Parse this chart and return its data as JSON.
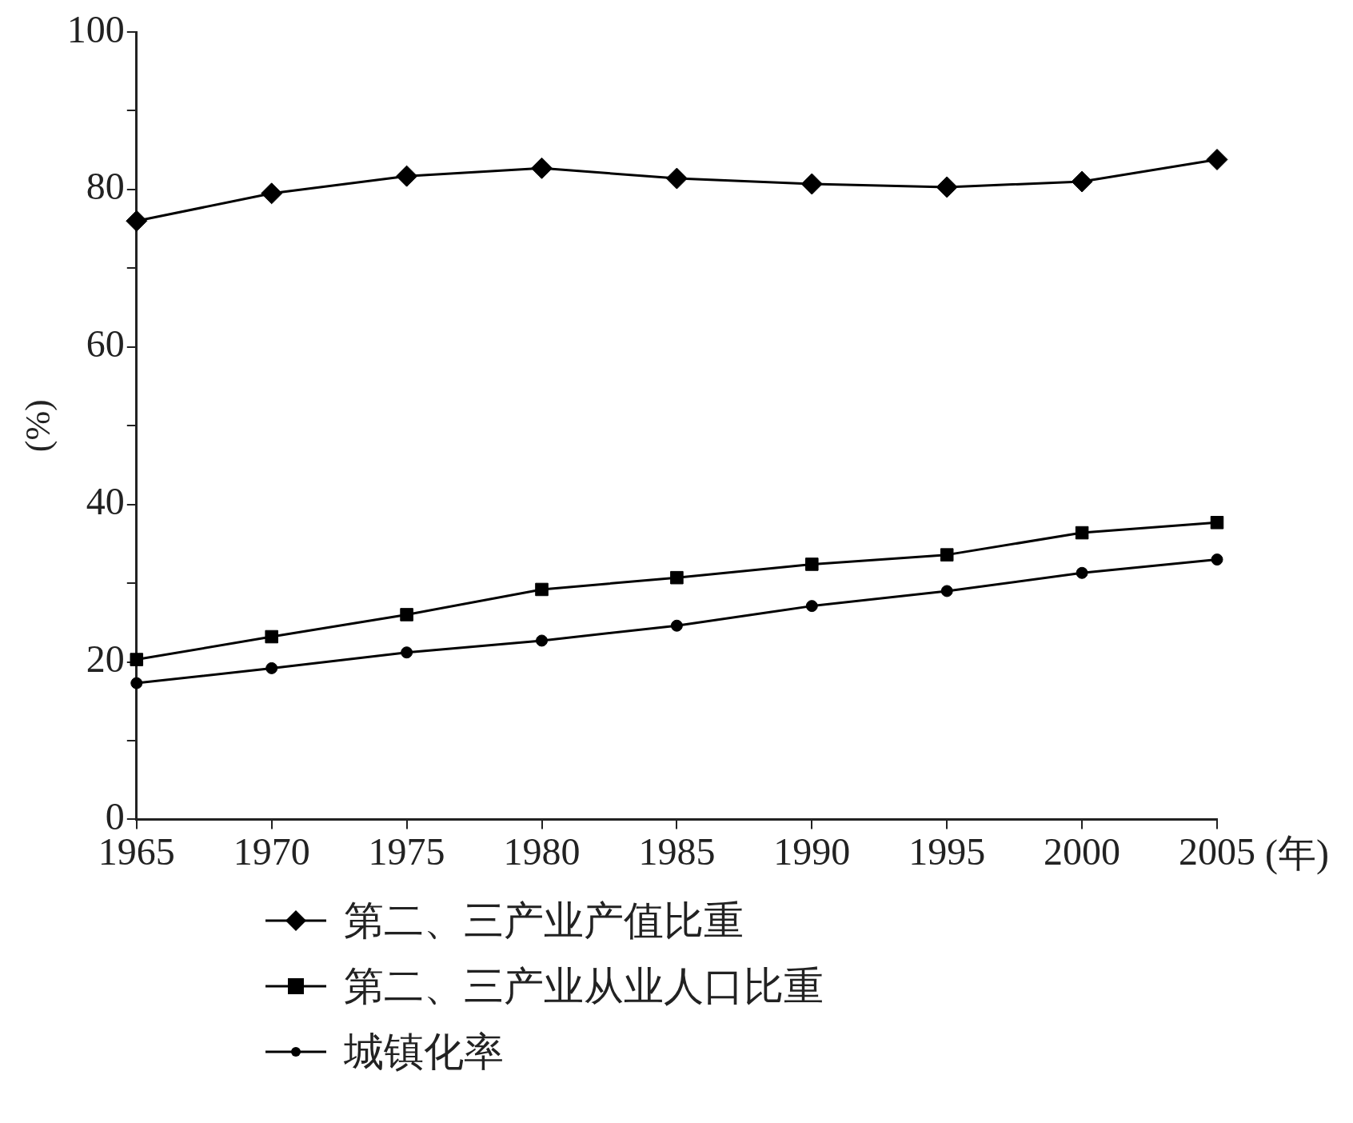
{
  "chart_data": {
    "type": "line",
    "xlabel": "(年)",
    "ylabel": "(%)",
    "x": [
      1965,
      1970,
      1975,
      1980,
      1985,
      1990,
      1995,
      2000,
      2005
    ],
    "xlim": [
      1965,
      2005
    ],
    "xticks": [
      1965,
      1970,
      1975,
      1980,
      1985,
      1990,
      1995,
      2000,
      2005
    ],
    "ylim": [
      0,
      100
    ],
    "yticks": [
      0,
      {
        "value": 10,
        "label": null
      },
      20,
      {
        "value": 30,
        "label": null
      },
      40,
      {
        "value": 50,
        "label": null
      },
      60,
      {
        "value": 70,
        "label": null
      },
      80,
      {
        "value": 90,
        "label": null
      },
      100
    ],
    "grid": false,
    "legend": "bottom",
    "line_style": "solid",
    "series": [
      {
        "name": "第二、三产业产值比重",
        "color": "#000000",
        "marker": "diamond",
        "values": [
          76,
          79.5,
          81.7,
          82.7,
          81.4,
          80.7,
          80.3,
          81,
          83.8
        ]
      },
      {
        "name": "第二、三产业从业人口比重",
        "color": "#000000",
        "marker": "square",
        "values": [
          20.3,
          23.2,
          26,
          29.2,
          30.7,
          32.4,
          33.6,
          36.4,
          37.7
        ]
      },
      {
        "name": "城镇化率",
        "color": "#000000",
        "marker": "circle",
        "values": [
          17.3,
          19.2,
          21.2,
          22.7,
          24.6,
          27.1,
          29,
          31.3,
          33
        ]
      }
    ]
  }
}
